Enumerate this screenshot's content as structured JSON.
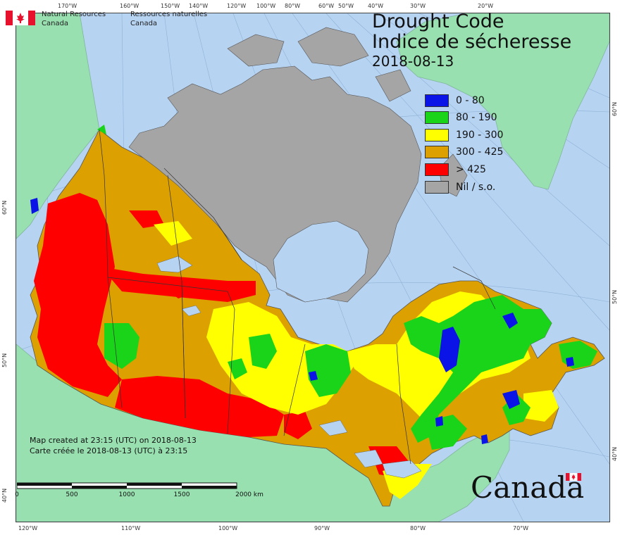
{
  "title": {
    "line1": "Drought Code",
    "line2": "Indice de sécheresse",
    "date": "2018-08-13"
  },
  "legend": [
    {
      "label": "0 - 80",
      "color": "#0a14e6"
    },
    {
      "label": "80 - 190",
      "color": "#19d419"
    },
    {
      "label": "190 - 300",
      "color": "#ffff00"
    },
    {
      "label": "300 - 425",
      "color": "#dca000"
    },
    {
      "label": "> 425",
      "color": "#ff0000"
    },
    {
      "label": "Nil / s.o.",
      "color": "#a5a5a5"
    }
  ],
  "agency": {
    "en_line1": "Natural Resources",
    "en_line2": "Canada",
    "fr_line1": "Ressources naturelles",
    "fr_line2": "Canada"
  },
  "credits": {
    "line_en": "Map created at 23:15 (UTC) on 2018-08-13",
    "line_fr": "Carte créée le 2018-08-13 (UTC) à 23:15"
  },
  "scale": {
    "labels": [
      "0",
      "500",
      "1000",
      "1500",
      "2000 km"
    ]
  },
  "wordmark": "Canada",
  "graticule": {
    "top": [
      "170°W",
      "160°W",
      "150°W",
      "140°W",
      "120°W",
      "100°W",
      "80°W",
      "60°W",
      "50°W",
      "40°W",
      "30°W",
      "20°W"
    ],
    "bottom": [
      "120°W",
      "110°W",
      "100°W",
      "90°W",
      "80°W",
      "70°W"
    ],
    "left": [
      "60°N",
      "50°N",
      "40°N"
    ],
    "right": [
      "60°N",
      "50°N",
      "40°N"
    ]
  },
  "colors": {
    "ocean": "#b7d3f2",
    "foreign_land": "#98e0b0",
    "lakes": "#b7d3f2"
  }
}
